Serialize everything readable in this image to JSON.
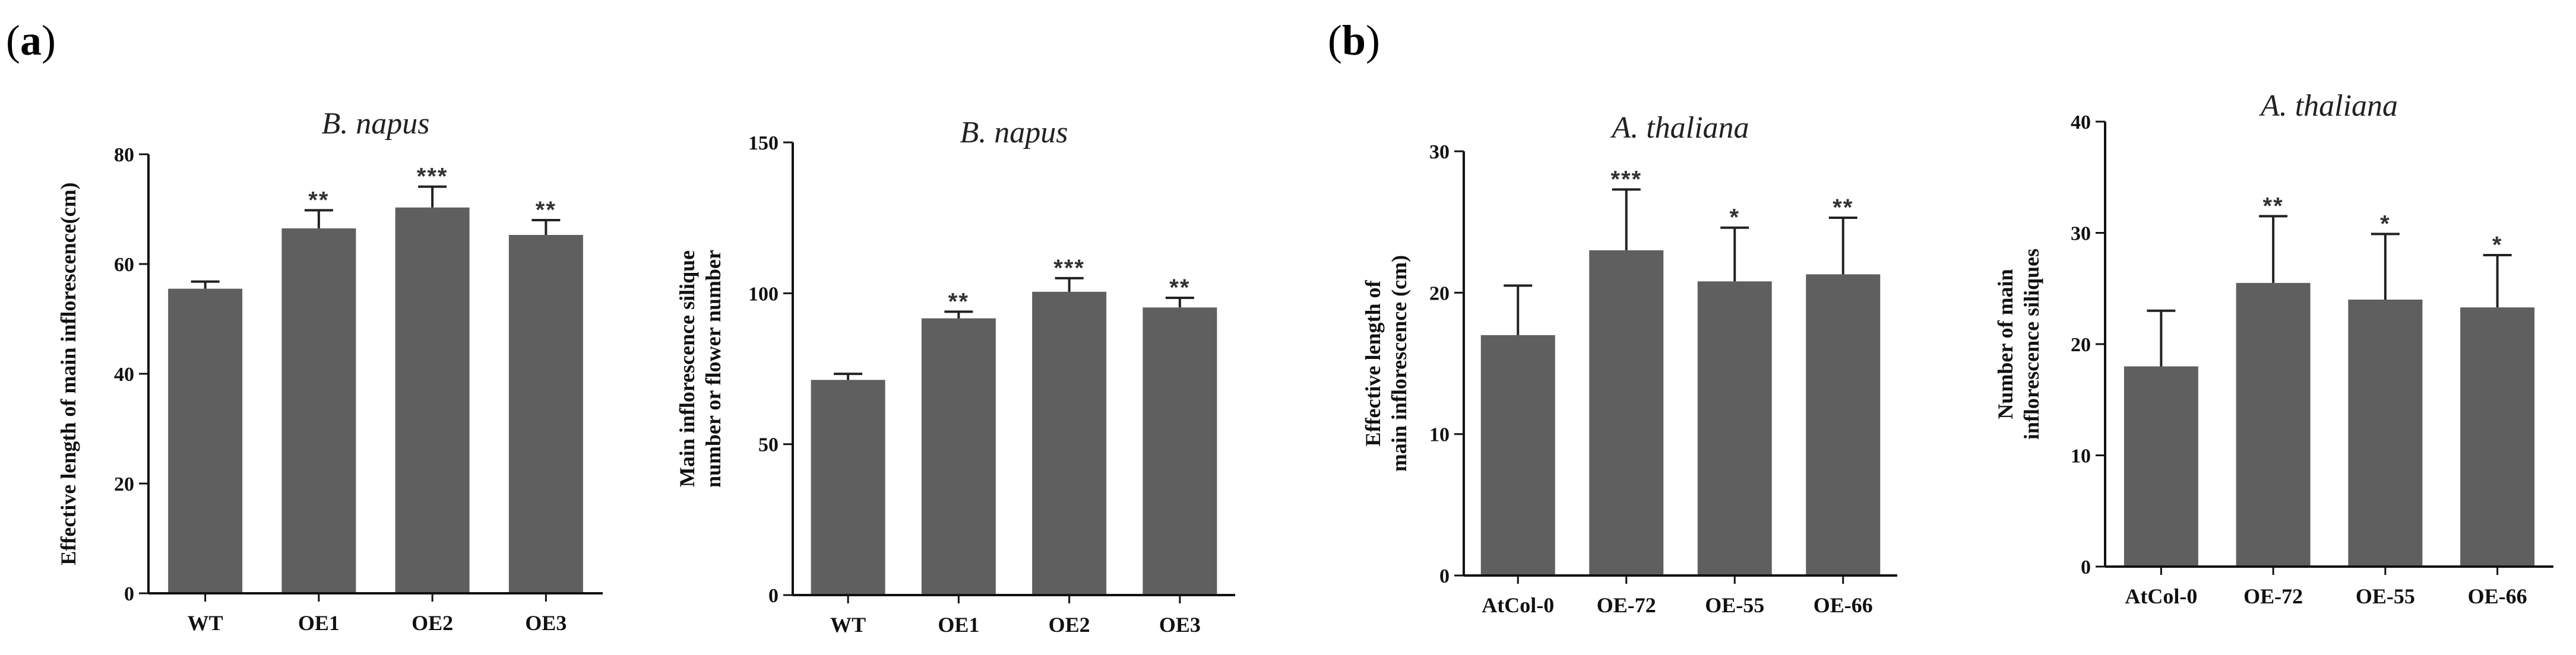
{
  "figure": {
    "panel_a": {
      "open": "(",
      "letter": "a",
      "close": ")"
    },
    "panel_b": {
      "open": "(",
      "letter": "b",
      "close": ")"
    }
  },
  "colors": {
    "bar": "#5f5f5f",
    "axis": "#111111"
  },
  "chart_data": [
    {
      "type": "bar",
      "title": "B. napus",
      "ylabel": "Effective length of main inflorescence(cm)",
      "xlabel": "",
      "ylim": [
        0,
        80
      ],
      "yticks": [
        0,
        20,
        40,
        60,
        80
      ],
      "categories": [
        "WT",
        "OE1",
        "OE2",
        "OE3"
      ],
      "values": [
        55.5,
        66.5,
        70.3,
        65.3
      ],
      "errors": [
        1.3,
        3.3,
        3.8,
        2.7
      ],
      "significance": [
        "",
        "**",
        "***",
        "**"
      ]
    },
    {
      "type": "bar",
      "title": "B. napus",
      "ylabel": "Main inflorescence silique number or flower number",
      "xlabel": "",
      "ylim": [
        0,
        150
      ],
      "yticks": [
        0,
        50,
        100,
        150
      ],
      "categories": [
        "WT",
        "OE1",
        "OE2",
        "OE3"
      ],
      "values": [
        71.3,
        91.7,
        100.5,
        95.3
      ],
      "errors": [
        2.0,
        2.2,
        4.5,
        3.2
      ],
      "significance": [
        "",
        "**",
        "***",
        "**"
      ]
    },
    {
      "type": "bar",
      "title": "A. thaliana",
      "ylabel": "Effective length of main inflorescence (cm)",
      "xlabel": "",
      "ylim": [
        0,
        30
      ],
      "yticks": [
        0,
        10,
        20,
        30
      ],
      "categories": [
        "AtCol-0",
        "OE-72",
        "OE-55",
        "OE-66"
      ],
      "values": [
        17.0,
        23.0,
        20.8,
        21.3
      ],
      "errors": [
        3.5,
        4.3,
        3.8,
        4.0
      ],
      "significance": [
        "",
        "***",
        "*",
        "**"
      ]
    },
    {
      "type": "bar",
      "title": "A. thaliana",
      "ylabel": "Number of main inflorescence siliques",
      "xlabel": "",
      "ylim": [
        0,
        40
      ],
      "yticks": [
        0,
        10,
        20,
        30,
        40
      ],
      "categories": [
        "AtCol-0",
        "OE-72",
        "OE-55",
        "OE-66"
      ],
      "values": [
        18.0,
        25.5,
        24.0,
        23.3
      ],
      "errors": [
        5.0,
        6.0,
        5.9,
        4.7
      ],
      "significance": [
        "",
        "**",
        "*",
        "*"
      ]
    }
  ]
}
